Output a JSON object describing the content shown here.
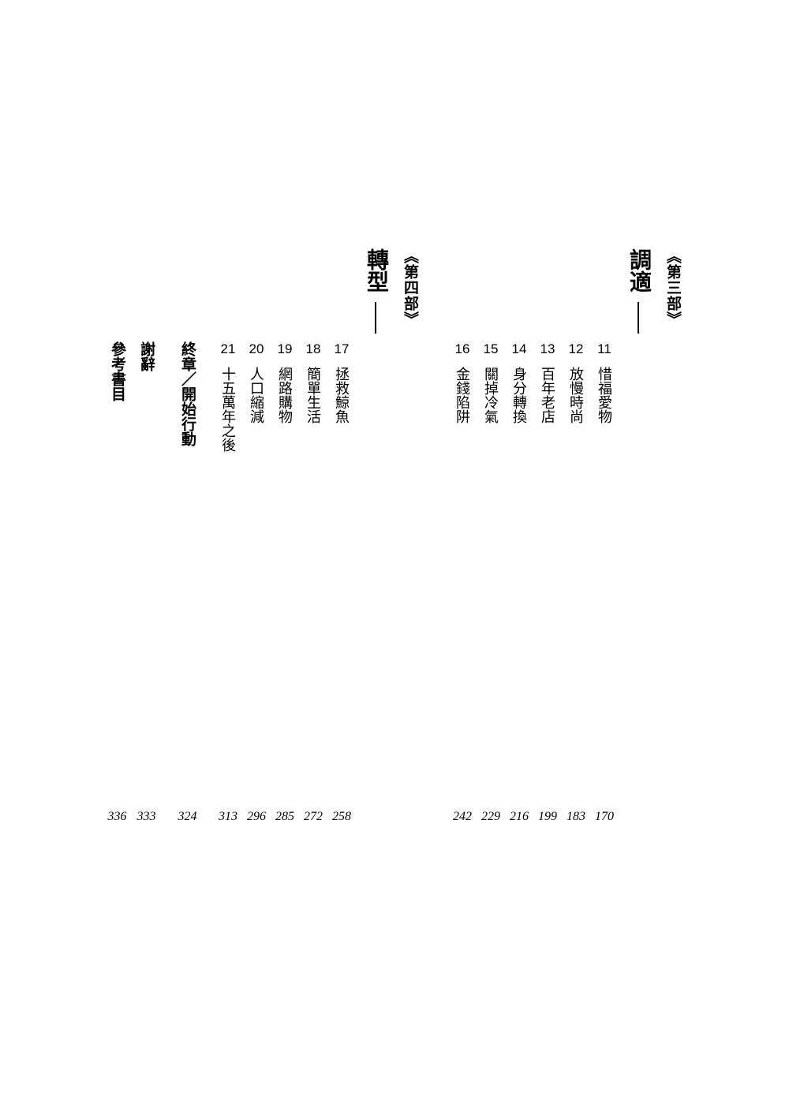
{
  "parts": [
    {
      "label": "《第三部》",
      "title": "調適"
    },
    {
      "label": "《第四部》",
      "title": "轉型"
    }
  ],
  "chapters_part3": [
    {
      "num": "11",
      "title": "惜福愛物",
      "page": "170"
    },
    {
      "num": "12",
      "title": "放慢時尚",
      "page": "183"
    },
    {
      "num": "13",
      "title": "百年老店",
      "page": "199"
    },
    {
      "num": "14",
      "title": "身分轉換",
      "page": "216"
    },
    {
      "num": "15",
      "title": "關掉冷氣",
      "page": "229"
    },
    {
      "num": "16",
      "title": "金錢陷阱",
      "page": "242"
    }
  ],
  "chapters_part4": [
    {
      "num": "17",
      "title": "拯救鯨魚",
      "page": "258"
    },
    {
      "num": "18",
      "title": "簡單生活",
      "page": "272"
    },
    {
      "num": "19",
      "title": "網路購物",
      "page": "285"
    },
    {
      "num": "20",
      "title": "人口縮減",
      "page": "296"
    },
    {
      "num": "21",
      "title": "十五萬年之後",
      "page": "313"
    }
  ],
  "end_sections": [
    {
      "title": "終章／開始行動",
      "page": "324"
    },
    {
      "title": "謝辭",
      "page": "333"
    },
    {
      "title": "參考書目",
      "page": "336"
    }
  ],
  "colors": {
    "background": "#ffffff",
    "text": "#000000"
  }
}
